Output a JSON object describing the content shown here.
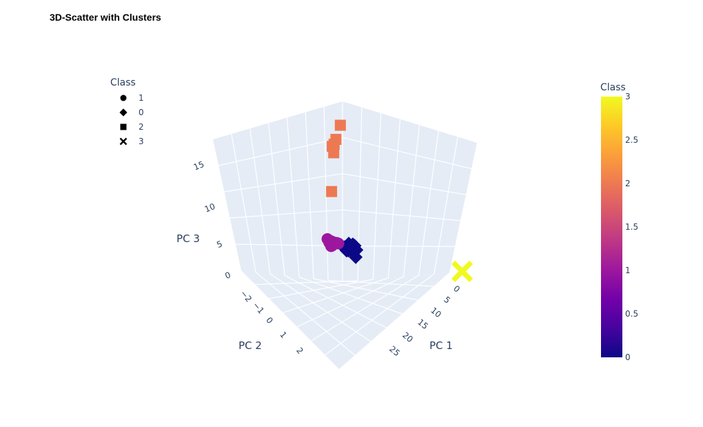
{
  "title": "3D-Scatter with Clusters",
  "chart_data": {
    "type": "scatter",
    "title": "3D-Scatter with Clusters",
    "axes": {
      "x": {
        "label": "PC 1",
        "ticks": [
          "0",
          "5",
          "10",
          "15",
          "20",
          "25"
        ],
        "range": [
          -2,
          28
        ]
      },
      "y": {
        "label": "PC 2",
        "ticks": [
          "−2",
          "−1",
          "0",
          "1",
          "2"
        ],
        "range": [
          -2.3,
          2.6
        ]
      },
      "z": {
        "label": "PC 3",
        "ticks": [
          "0",
          "5",
          "10",
          "15"
        ],
        "range": [
          -0.5,
          18
        ]
      }
    },
    "grid": true,
    "legend": {
      "title": "Class",
      "placement": "top-left",
      "items": [
        {
          "label": "1",
          "symbol": "circle"
        },
        {
          "label": "0",
          "symbol": "diamond"
        },
        {
          "label": "2",
          "symbol": "square"
        },
        {
          "label": "3",
          "symbol": "x"
        }
      ]
    },
    "colorbar": {
      "title": "Class",
      "range": [
        0,
        3
      ],
      "ticks": [
        "0",
        "0.5",
        "1",
        "1.5",
        "2",
        "2.5",
        "3"
      ],
      "colors": [
        "#0d0887",
        "#46039f",
        "#7201a8",
        "#9c179e",
        "#bd3786",
        "#d8576b",
        "#ed7953",
        "#fb9f3a",
        "#fdca26",
        "#f0f921"
      ]
    },
    "series": [
      {
        "name": "0",
        "symbol": "diamond",
        "color": "#0d0887",
        "points": [
          [
            8,
            -0.3,
            3.0
          ],
          [
            9,
            -0.1,
            3.6
          ],
          [
            10,
            0,
            3.9
          ],
          [
            10.5,
            0.05,
            3.7
          ],
          [
            11,
            0.1,
            3.8
          ],
          [
            11.5,
            0.15,
            3.5
          ],
          [
            12,
            0.2,
            3.3
          ],
          [
            12.5,
            0.25,
            3.0
          ],
          [
            13,
            0.25,
            2.9
          ],
          [
            13.5,
            0.3,
            2.7
          ],
          [
            14,
            0.3,
            2.6
          ],
          [
            14.5,
            0.35,
            2.4
          ],
          [
            11,
            0,
            3.2
          ],
          [
            12,
            0.1,
            2.7
          ],
          [
            13,
            0.2,
            2.4
          ],
          [
            12.5,
            0.2,
            3.5
          ]
        ]
      },
      {
        "name": "1",
        "symbol": "circle",
        "color": "#9c179e",
        "points": [
          [
            16,
            0.4,
            2.6
          ],
          [
            17,
            0.5,
            2.4
          ],
          [
            18,
            0.55,
            2.2
          ],
          [
            18.5,
            0.6,
            2.0
          ],
          [
            19,
            0.7,
            1.9
          ],
          [
            19.5,
            0.7,
            1.8
          ],
          [
            20,
            0.8,
            1.7
          ],
          [
            20.5,
            0.85,
            1.6
          ],
          [
            21,
            0.9,
            1.5
          ],
          [
            22,
            1.0,
            1.4
          ],
          [
            18,
            0.5,
            1.8
          ],
          [
            19.5,
            0.7,
            1.5
          ],
          [
            21,
            0.9,
            1.2
          ],
          [
            20,
            0.8,
            1.0
          ]
        ]
      },
      {
        "name": "2",
        "symbol": "square",
        "color": "#ed7953",
        "points": [
          [
            22,
            1.5,
            17.0
          ],
          [
            23,
            1.5,
            14.8
          ],
          [
            24,
            1.6,
            13.8
          ],
          [
            23.5,
            1.5,
            12.8
          ],
          [
            25,
            1.7,
            13.2
          ],
          [
            24,
            1.5,
            7.2
          ]
        ]
      },
      {
        "name": "3",
        "symbol": "x",
        "color": "#f0f921",
        "points": [
          [
            -1,
            2.2,
            0.0
          ]
        ]
      }
    ]
  }
}
